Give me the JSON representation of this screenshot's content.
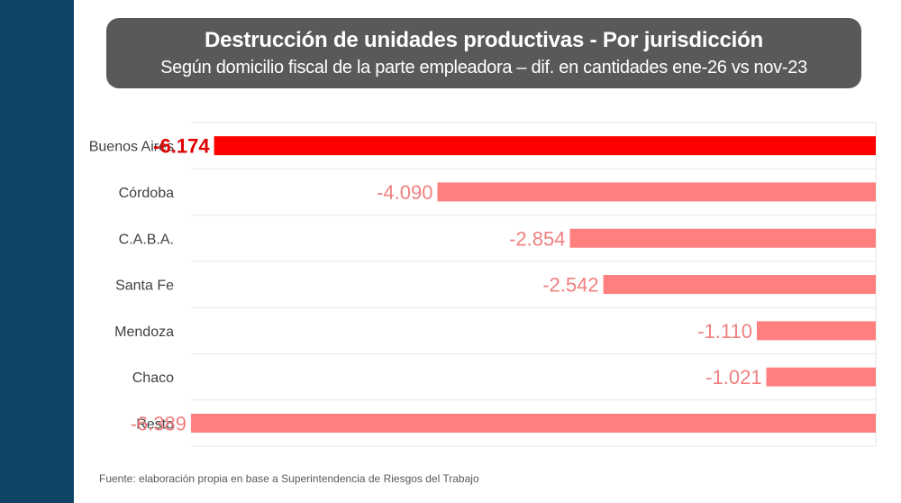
{
  "title": "Destrucción de unidades productivas - Por jurisdicción",
  "subtitle": "Según domicilio fiscal de la parte empleadora – dif. en cantidades ene-26 vs nov-23",
  "footer": "Fuente: elaboración propia en base a Superintendencia de Riesgos del Trabajo",
  "colors": {
    "sidebar": "#0f4466",
    "highlight_bar": "#ff0000",
    "bar": "#ff7f7f",
    "highlight_label": "#e00000",
    "label": "#f08080",
    "grid": "#e6e6e6"
  },
  "chart_data": {
    "type": "bar",
    "orientation": "horizontal",
    "title": "Destrucción de unidades productivas - Por jurisdicción",
    "subtitle": "Según domicilio fiscal de la parte empleadora – dif. en cantidades ene-26 vs nov-23",
    "categories": [
      "Buenos Aires",
      "Córdoba",
      "C.A.B.A.",
      "Santa Fe",
      "Mendoza",
      "Chaco",
      "Resto"
    ],
    "values": [
      -6174,
      -4090,
      -2854,
      -2542,
      -1110,
      -1021,
      -6389
    ],
    "value_labels": [
      "-6.174",
      "-4.090",
      "-2.854",
      "-2.542",
      "-1.110",
      "-1.021",
      "-6.389"
    ],
    "highlighted_category": "Buenos Aires",
    "xlim": [
      -6389,
      0
    ],
    "grid": true,
    "legend": "none"
  }
}
